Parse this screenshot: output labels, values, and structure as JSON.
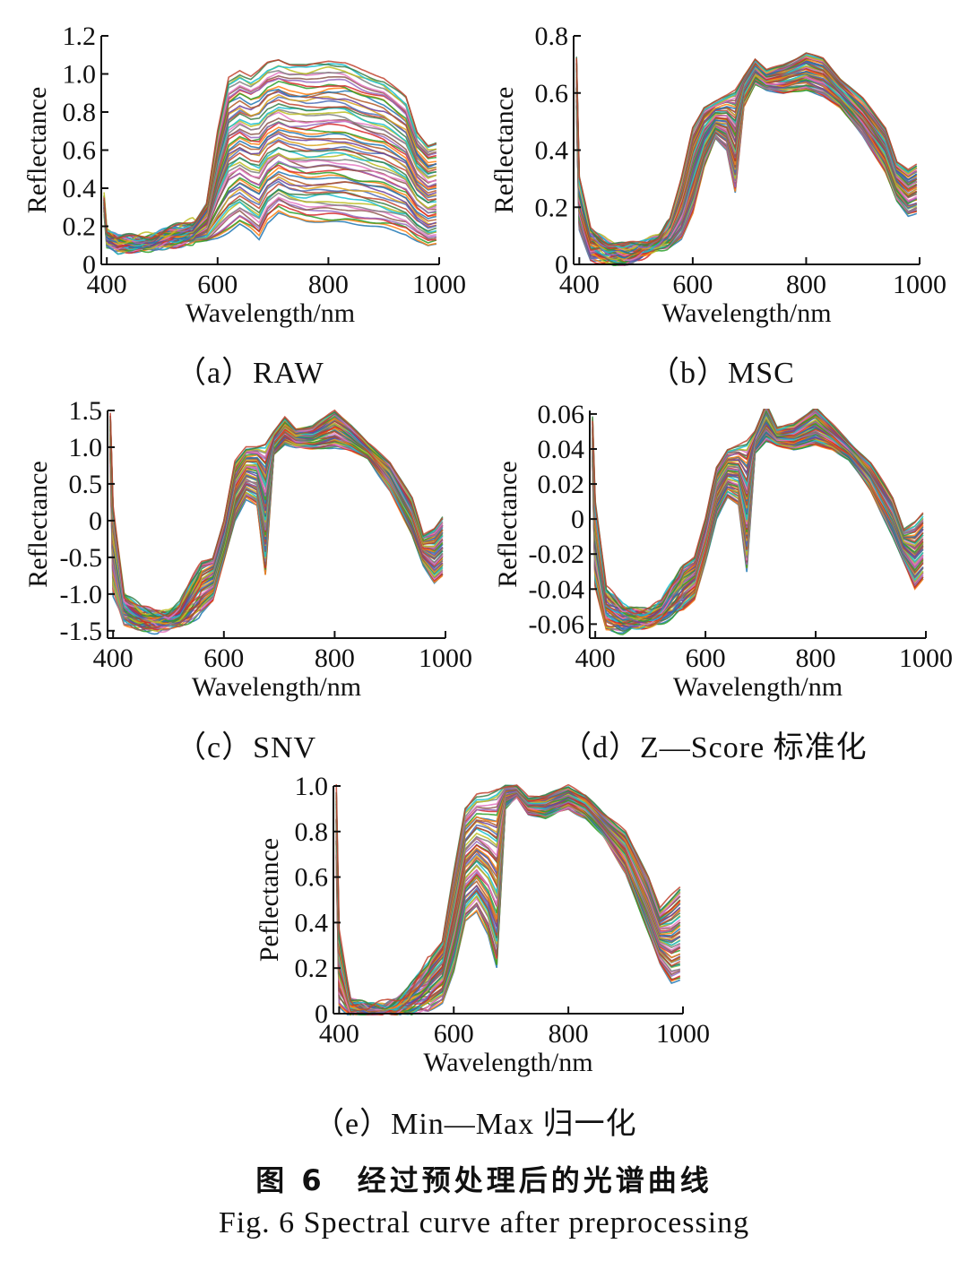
{
  "figure": {
    "title_cn": "图 6　经过预处理后的光谱曲线",
    "caption_en": "Fig. 6 Spectral curve after preprocessing"
  },
  "chart_data": [
    {
      "id": "raw",
      "type": "line",
      "caption": "（a）RAW",
      "xlabel": "Wavelength/nm",
      "ylabel": "Reflectance",
      "xlim": [
        390,
        1000
      ],
      "ylim": [
        0,
        1.2
      ],
      "x_ticks": [
        400,
        600,
        800,
        1000
      ],
      "y_ticks": [
        0,
        0.2,
        0.4,
        0.6,
        0.8,
        1.0,
        1.2
      ],
      "y_tick_labels": [
        "0",
        "0.2",
        "0.4",
        "0.6",
        "0.8",
        "1.0",
        "1.2"
      ],
      "legend": "none",
      "series_count": 60,
      "x": [
        395,
        400,
        420,
        450,
        480,
        500,
        520,
        540,
        560,
        580,
        600,
        620,
        640,
        660,
        675,
        690,
        710,
        730,
        760,
        800,
        830,
        860,
        900,
        940,
        960,
        980,
        995
      ],
      "series": [
        {
          "name": "upper envelope",
          "values": [
            0.36,
            0.18,
            0.14,
            0.14,
            0.15,
            0.17,
            0.19,
            0.21,
            0.23,
            0.32,
            0.7,
            0.98,
            1.02,
            0.99,
            1.02,
            1.06,
            1.08,
            1.06,
            1.05,
            1.07,
            1.06,
            1.02,
            0.98,
            0.88,
            0.7,
            0.63,
            0.64
          ]
        },
        {
          "name": "lower envelope",
          "values": [
            0.28,
            0.1,
            0.07,
            0.08,
            0.08,
            0.09,
            0.1,
            0.11,
            0.12,
            0.12,
            0.14,
            0.17,
            0.21,
            0.17,
            0.13,
            0.22,
            0.27,
            0.24,
            0.22,
            0.22,
            0.22,
            0.21,
            0.19,
            0.16,
            0.12,
            0.09,
            0.1
          ]
        }
      ]
    },
    {
      "id": "msc",
      "type": "line",
      "caption": "（b）MSC",
      "xlabel": "Wavelength/nm",
      "ylabel": "Reflectance",
      "xlim": [
        390,
        1000
      ],
      "ylim": [
        0,
        0.8
      ],
      "x_ticks": [
        400,
        600,
        800,
        1000
      ],
      "y_ticks": [
        0,
        0.2,
        0.4,
        0.6,
        0.8
      ],
      "y_tick_labels": [
        "0",
        "0.2",
        "0.4",
        "0.6",
        "0.8"
      ],
      "legend": "none",
      "series_count": 60,
      "x": [
        395,
        400,
        420,
        450,
        480,
        500,
        520,
        540,
        560,
        580,
        600,
        620,
        640,
        660,
        675,
        690,
        710,
        730,
        760,
        800,
        830,
        860,
        900,
        940,
        960,
        980,
        995
      ],
      "series": [
        {
          "name": "upper envelope",
          "values": [
            0.72,
            0.3,
            0.12,
            0.08,
            0.07,
            0.07,
            0.08,
            0.1,
            0.16,
            0.3,
            0.48,
            0.55,
            0.57,
            0.59,
            0.61,
            0.66,
            0.72,
            0.68,
            0.7,
            0.74,
            0.72,
            0.65,
            0.58,
            0.48,
            0.36,
            0.33,
            0.35
          ]
        },
        {
          "name": "lower envelope",
          "values": [
            0.55,
            0.12,
            0.02,
            0.01,
            0.0,
            0.02,
            0.04,
            0.06,
            0.06,
            0.09,
            0.18,
            0.34,
            0.44,
            0.4,
            0.25,
            0.55,
            0.63,
            0.61,
            0.6,
            0.61,
            0.59,
            0.55,
            0.45,
            0.32,
            0.22,
            0.17,
            0.18
          ]
        }
      ]
    },
    {
      "id": "snv",
      "type": "line",
      "caption": "（c）SNV",
      "xlabel": "Wavelength/nm",
      "ylabel": "Reflectance",
      "xlim": [
        390,
        1000
      ],
      "ylim": [
        -1.6,
        1.5
      ],
      "x_ticks": [
        400,
        600,
        800,
        1000
      ],
      "y_ticks": [
        -1.5,
        -1.0,
        -0.5,
        0,
        0.5,
        1.0,
        1.5
      ],
      "y_tick_labels": [
        "-1.5",
        "-1.0",
        "-0.5",
        "0",
        "0.5",
        "1.0",
        "1.5"
      ],
      "legend": "none",
      "series_count": 60,
      "x": [
        395,
        400,
        420,
        450,
        480,
        500,
        520,
        540,
        560,
        580,
        600,
        620,
        640,
        660,
        675,
        690,
        710,
        730,
        760,
        800,
        830,
        860,
        900,
        940,
        960,
        980,
        995
      ],
      "series": [
        {
          "name": "upper envelope",
          "values": [
            1.45,
            0.2,
            -1.0,
            -1.2,
            -1.25,
            -1.25,
            -1.15,
            -0.85,
            -0.55,
            -0.5,
            0.0,
            0.8,
            1.0,
            1.02,
            1.05,
            1.2,
            1.4,
            1.25,
            1.28,
            1.5,
            1.3,
            1.05,
            0.8,
            0.3,
            -0.2,
            -0.1,
            0.05
          ]
        },
        {
          "name": "lower envelope",
          "values": [
            0.8,
            -1.0,
            -1.4,
            -1.45,
            -1.5,
            -1.45,
            -1.4,
            -1.35,
            -1.25,
            -1.1,
            -0.55,
            0.0,
            0.3,
            0.2,
            -0.75,
            0.9,
            1.05,
            1.0,
            0.98,
            1.0,
            0.95,
            0.85,
            0.4,
            -0.2,
            -0.6,
            -0.85,
            -0.75
          ]
        }
      ]
    },
    {
      "id": "zscore",
      "type": "line",
      "caption": "（d）Z—Score 标准化",
      "xlabel": "Wavelength/nm",
      "ylabel": "Reflectance",
      "xlim": [
        390,
        1000
      ],
      "ylim": [
        -0.068,
        0.062
      ],
      "x_ticks": [
        400,
        600,
        800,
        1000
      ],
      "y_ticks": [
        -0.06,
        -0.04,
        -0.02,
        0,
        0.02,
        0.04,
        0.06
      ],
      "y_tick_labels": [
        "-0.06",
        "-0.04",
        "-0.02",
        "0",
        "0.02",
        "0.04",
        "0.06"
      ],
      "legend": "none",
      "series_count": 60,
      "x": [
        395,
        400,
        420,
        450,
        480,
        500,
        520,
        540,
        560,
        580,
        600,
        620,
        640,
        660,
        675,
        690,
        710,
        730,
        760,
        800,
        830,
        860,
        900,
        940,
        960,
        980,
        995
      ],
      "series": [
        {
          "name": "upper envelope",
          "values": [
            0.058,
            0.01,
            -0.04,
            -0.05,
            -0.052,
            -0.052,
            -0.048,
            -0.036,
            -0.026,
            -0.022,
            0.0,
            0.03,
            0.04,
            0.042,
            0.044,
            0.05,
            0.066,
            0.052,
            0.054,
            0.064,
            0.054,
            0.044,
            0.032,
            0.012,
            -0.006,
            -0.002,
            0.003
          ]
        },
        {
          "name": "lower envelope",
          "values": [
            0.03,
            -0.04,
            -0.062,
            -0.064,
            -0.062,
            -0.06,
            -0.058,
            -0.056,
            -0.052,
            -0.046,
            -0.024,
            0.0,
            0.012,
            0.008,
            -0.03,
            0.038,
            0.044,
            0.042,
            0.04,
            0.042,
            0.04,
            0.034,
            0.016,
            -0.01,
            -0.025,
            -0.04,
            -0.034
          ]
        }
      ]
    },
    {
      "id": "minmax",
      "type": "line",
      "caption": "（e）Min—Max 归一化",
      "xlabel": "Wavelength/nm",
      "ylabel": "Peflectance",
      "xlim": [
        390,
        1000
      ],
      "ylim": [
        0,
        1.0
      ],
      "x_ticks": [
        400,
        600,
        800,
        1000
      ],
      "y_ticks": [
        0,
        0.2,
        0.4,
        0.6,
        0.8,
        1.0
      ],
      "y_tick_labels": [
        "0",
        "0.2",
        "0.4",
        "0.6",
        "0.8",
        "1.0"
      ],
      "legend": "none",
      "series_count": 60,
      "x": [
        395,
        400,
        420,
        450,
        480,
        500,
        520,
        540,
        560,
        580,
        600,
        620,
        640,
        660,
        675,
        690,
        710,
        730,
        760,
        800,
        830,
        860,
        900,
        940,
        960,
        980,
        995
      ],
      "series": [
        {
          "name": "upper envelope",
          "values": [
            0.99,
            0.35,
            0.06,
            0.03,
            0.04,
            0.06,
            0.1,
            0.17,
            0.25,
            0.32,
            0.62,
            0.9,
            0.96,
            0.97,
            0.99,
            1.0,
            1.0,
            0.95,
            0.96,
            1.0,
            0.96,
            0.88,
            0.8,
            0.6,
            0.46,
            0.52,
            0.56
          ]
        },
        {
          "name": "lower envelope",
          "values": [
            0.7,
            0.05,
            0.0,
            0.0,
            0.0,
            0.0,
            0.0,
            0.01,
            0.02,
            0.05,
            0.18,
            0.4,
            0.45,
            0.35,
            0.2,
            0.9,
            0.95,
            0.88,
            0.86,
            0.9,
            0.86,
            0.78,
            0.62,
            0.35,
            0.22,
            0.14,
            0.15
          ]
        }
      ]
    }
  ]
}
